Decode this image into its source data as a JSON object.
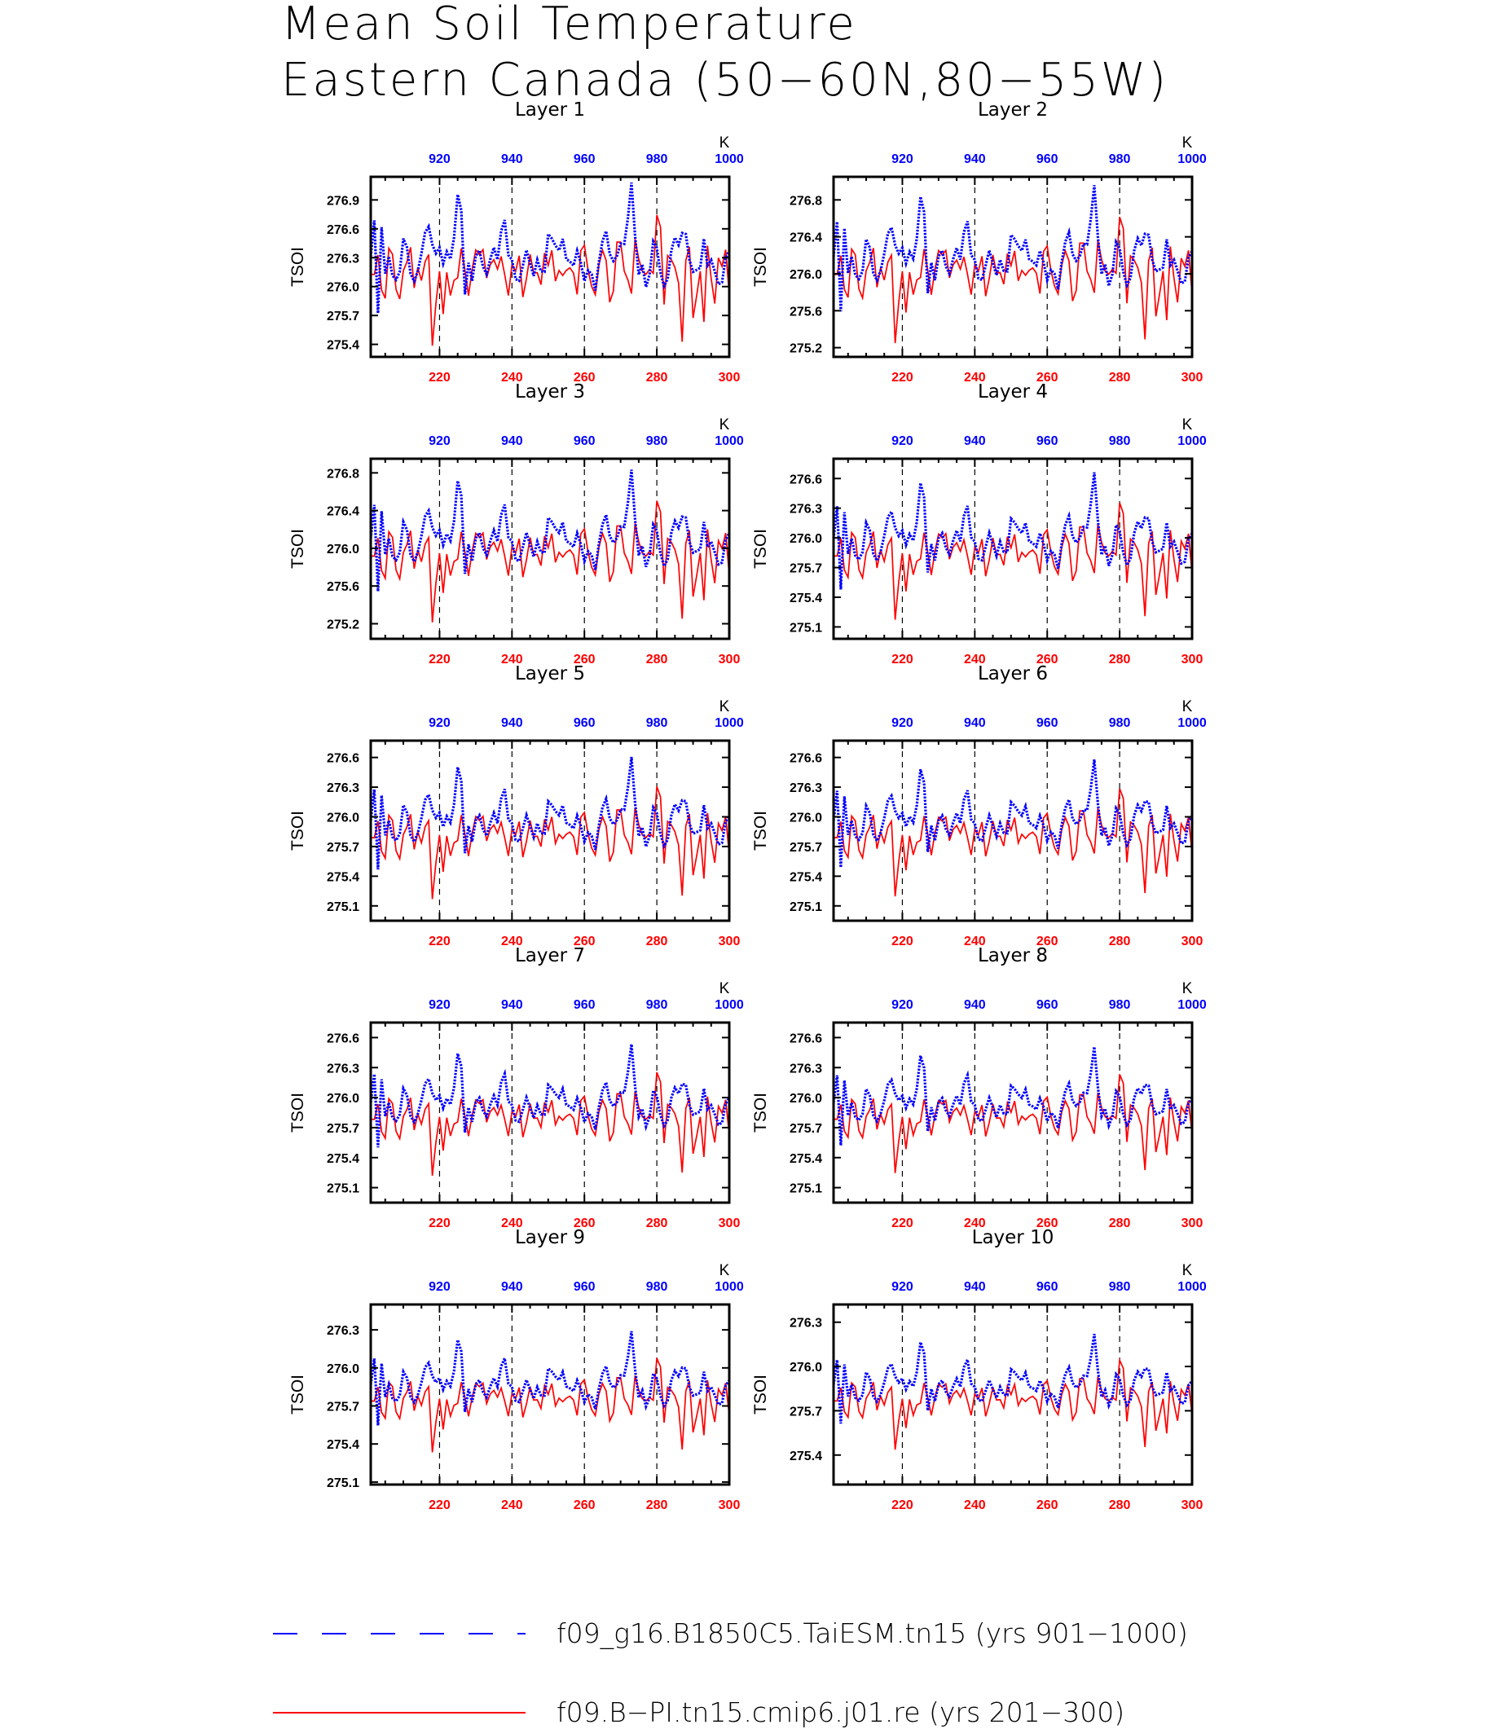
{
  "title_lines": [
    "Mean Soil Temperature",
    "Eastern Canada (50−60N,80−55W)"
  ],
  "colors": {
    "blue": "#0000ff",
    "red": "#ff0000",
    "axis": "#000000"
  },
  "legend": [
    {
      "label": "f09_g16.B1850C5.TaiESM.tn15 (yrs 901−1000)",
      "color": "#0000ff",
      "style": "dashed"
    },
    {
      "label": "f09.B−PI.tn15.cmip6.j01.re (yrs 201−300)",
      "color": "#ff0000",
      "style": "solid"
    }
  ],
  "chart_data": [
    {
      "type": "line",
      "title": "Layer 1",
      "ylabel": "TSOI",
      "top_unit": "K",
      "x_bottom": [
        201,
        300
      ],
      "x_top": [
        901,
        1000
      ],
      "ylim": [
        275.27,
        277.14
      ],
      "yticks": [
        "275.4",
        "275.7",
        "276.0",
        "276.3",
        "276.6",
        "276.9"
      ],
      "xticks_bottom": [
        "220",
        "240",
        "260",
        "280",
        "300"
      ],
      "xticks_top": [
        "920",
        "940",
        "960",
        "980",
        "1000"
      ]
    },
    {
      "type": "line",
      "title": "Layer 2",
      "ylabel": "TSOI",
      "top_unit": "K",
      "x_bottom": [
        201,
        300
      ],
      "x_top": [
        901,
        1000
      ],
      "ylim": [
        275.1,
        277.05
      ],
      "yticks": [
        "275.2",
        "275.6",
        "276.0",
        "276.4",
        "276.8"
      ],
      "xticks_bottom": [
        "220",
        "240",
        "260",
        "280",
        "300"
      ],
      "xticks_top": [
        "920",
        "940",
        "960",
        "980",
        "1000"
      ]
    },
    {
      "type": "line",
      "title": "Layer 3",
      "ylabel": "TSOI",
      "top_unit": "K",
      "x_bottom": [
        201,
        300
      ],
      "x_top": [
        901,
        1000
      ],
      "ylim": [
        275.04,
        276.95
      ],
      "yticks": [
        "275.2",
        "275.6",
        "276.0",
        "276.4",
        "276.8"
      ],
      "xticks_bottom": [
        "220",
        "240",
        "260",
        "280",
        "300"
      ],
      "xticks_top": [
        "920",
        "940",
        "960",
        "980",
        "1000"
      ]
    },
    {
      "type": "line",
      "title": "Layer 4",
      "ylabel": "TSOI",
      "top_unit": "K",
      "x_bottom": [
        201,
        300
      ],
      "x_top": [
        901,
        1000
      ],
      "ylim": [
        274.98,
        276.8
      ],
      "yticks": [
        "275.1",
        "275.4",
        "275.7",
        "276.0",
        "276.3",
        "276.6"
      ],
      "xticks_bottom": [
        "220",
        "240",
        "260",
        "280",
        "300"
      ],
      "xticks_top": [
        "920",
        "940",
        "960",
        "980",
        "1000"
      ]
    },
    {
      "type": "line",
      "title": "Layer 5",
      "ylabel": "TSOI",
      "top_unit": "K",
      "x_bottom": [
        201,
        300
      ],
      "x_top": [
        901,
        1000
      ],
      "ylim": [
        274.95,
        276.77
      ],
      "yticks": [
        "275.1",
        "275.4",
        "275.7",
        "276.0",
        "276.3",
        "276.6"
      ],
      "xticks_bottom": [
        "220",
        "240",
        "260",
        "280",
        "300"
      ],
      "xticks_top": [
        "920",
        "940",
        "960",
        "980",
        "1000"
      ]
    },
    {
      "type": "line",
      "title": "Layer 6",
      "ylabel": "TSOI",
      "top_unit": "K",
      "x_bottom": [
        201,
        300
      ],
      "x_top": [
        901,
        1000
      ],
      "ylim": [
        274.95,
        276.77
      ],
      "yticks": [
        "275.1",
        "275.4",
        "275.7",
        "276.0",
        "276.3",
        "276.6"
      ],
      "xticks_bottom": [
        "220",
        "240",
        "260",
        "280",
        "300"
      ],
      "xticks_top": [
        "920",
        "940",
        "960",
        "980",
        "1000"
      ]
    },
    {
      "type": "line",
      "title": "Layer 7",
      "ylabel": "TSOI",
      "top_unit": "K",
      "x_bottom": [
        201,
        300
      ],
      "x_top": [
        901,
        1000
      ],
      "ylim": [
        274.95,
        276.75
      ],
      "yticks": [
        "275.1",
        "275.4",
        "275.7",
        "276.0",
        "276.3",
        "276.6"
      ],
      "xticks_bottom": [
        "220",
        "240",
        "260",
        "280",
        "300"
      ],
      "xticks_top": [
        "920",
        "940",
        "960",
        "980",
        "1000"
      ]
    },
    {
      "type": "line",
      "title": "Layer 8",
      "ylabel": "TSOI",
      "top_unit": "K",
      "x_bottom": [
        201,
        300
      ],
      "x_top": [
        901,
        1000
      ],
      "ylim": [
        274.95,
        276.75
      ],
      "yticks": [
        "275.1",
        "275.4",
        "275.7",
        "276.0",
        "276.3",
        "276.6"
      ],
      "xticks_bottom": [
        "220",
        "240",
        "260",
        "280",
        "300"
      ],
      "xticks_top": [
        "920",
        "940",
        "960",
        "980",
        "1000"
      ]
    },
    {
      "type": "line",
      "title": "Layer 9",
      "ylabel": "TSOI",
      "top_unit": "K",
      "x_bottom": [
        201,
        300
      ],
      "x_top": [
        901,
        1000
      ],
      "ylim": [
        275.08,
        276.5
      ],
      "yticks": [
        "275.1",
        "275.4",
        "275.7",
        "276.0",
        "276.3"
      ],
      "xticks_bottom": [
        "220",
        "240",
        "260",
        "280",
        "300"
      ],
      "xticks_top": [
        "920",
        "940",
        "960",
        "980",
        "1000"
      ]
    },
    {
      "type": "line",
      "title": "Layer 10",
      "ylabel": "TSOI",
      "top_unit": "K",
      "x_bottom": [
        201,
        300
      ],
      "x_top": [
        901,
        1000
      ],
      "ylim": [
        275.2,
        276.42
      ],
      "yticks": [
        "275.4",
        "275.7",
        "276.0",
        "276.3"
      ],
      "xticks_bottom": [
        "220",
        "240",
        "260",
        "280",
        "300"
      ],
      "xticks_top": [
        "920",
        "940",
        "960",
        "980",
        "1000"
      ]
    }
  ]
}
